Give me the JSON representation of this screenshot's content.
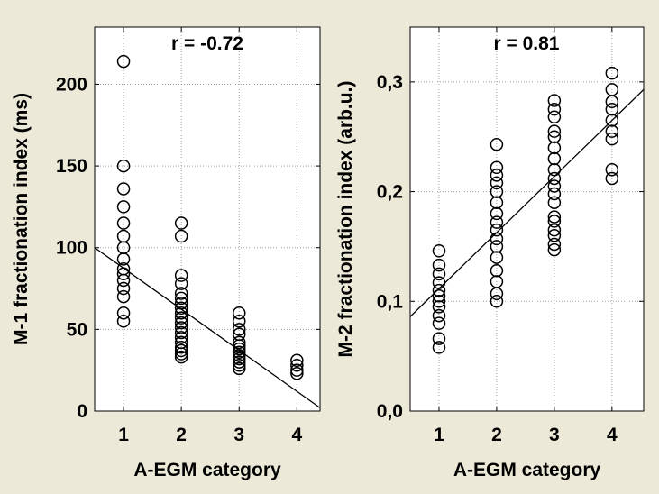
{
  "chart_data": [
    {
      "type": "scatter",
      "xlabel": "A-EGM category",
      "ylabel": "M-1 fractionation index (ms)",
      "annotation": "r = -0.72",
      "xlim": [
        0.5,
        4.4
      ],
      "ylim": [
        0,
        235
      ],
      "xticks": [
        1,
        2,
        3,
        4
      ],
      "yticks": [
        0,
        50,
        100,
        150,
        200
      ],
      "ytick_labels": [
        "0",
        "50",
        "100",
        "150",
        "200"
      ],
      "grid": true,
      "points": {
        "1": [
          55,
          60,
          70,
          75,
          80,
          84,
          87,
          93,
          100,
          107,
          115,
          125,
          136,
          150,
          214
        ],
        "2": [
          33,
          35,
          37,
          39,
          42,
          45,
          48,
          51,
          54,
          57,
          60,
          63,
          66,
          69,
          72,
          78,
          83,
          107,
          115
        ],
        "3": [
          26,
          28,
          30,
          32,
          34,
          36,
          38,
          40,
          42,
          47,
          50,
          55,
          60
        ],
        "4": [
          23,
          25,
          28,
          31
        ]
      },
      "fit": {
        "x": [
          0.5,
          4.4
        ],
        "y": [
          100,
          2
        ]
      }
    },
    {
      "type": "scatter",
      "xlabel": "A-EGM category",
      "ylabel": "M-2 fractionation index (arb.u.)",
      "annotation": "r = 0.81",
      "xlim": [
        0.5,
        4.55
      ],
      "ylim": [
        0,
        0.35
      ],
      "xticks": [
        1,
        2,
        3,
        4
      ],
      "yticks": [
        0,
        0.1,
        0.2,
        0.3
      ],
      "ytick_labels": [
        "0,0",
        "0,1",
        "0,2",
        "0,3"
      ],
      "grid": true,
      "points": {
        "1": [
          0.058,
          0.066,
          0.08,
          0.087,
          0.095,
          0.1,
          0.105,
          0.11,
          0.117,
          0.125,
          0.133,
          0.146
        ],
        "2": [
          0.1,
          0.107,
          0.118,
          0.128,
          0.14,
          0.15,
          0.157,
          0.165,
          0.172,
          0.18,
          0.19,
          0.2,
          0.208,
          0.215,
          0.222,
          0.243
        ],
        "3": [
          0.147,
          0.152,
          0.16,
          0.165,
          0.173,
          0.177,
          0.19,
          0.198,
          0.205,
          0.212,
          0.22,
          0.23,
          0.24,
          0.25,
          0.255,
          0.268,
          0.275,
          0.283
        ],
        "4": [
          0.212,
          0.22,
          0.248,
          0.255,
          0.265,
          0.275,
          0.282,
          0.293,
          0.308
        ]
      },
      "fit": {
        "x": [
          0.5,
          4.55
        ],
        "y": [
          0.086,
          0.293
        ]
      }
    }
  ]
}
